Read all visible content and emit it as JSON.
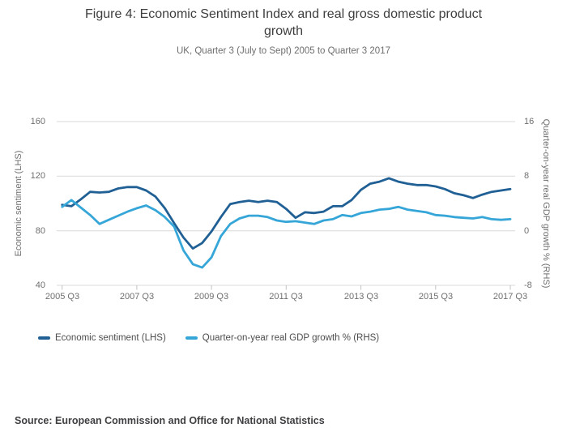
{
  "title": "Figure 4: Economic Sentiment Index and real gross domestic product growth",
  "subtitle": "UK, Quarter 3 (July to Sept) 2005 to Quarter 3 2017",
  "source": "Source: European Commission and Office for National Statistics",
  "colors": {
    "sentiment_line": "#206095",
    "gdp_line": "#35a6d7",
    "gridline": "#d9d9d9",
    "tick": "#c2c2c2"
  },
  "legend": [
    {
      "label": "Economic sentiment (LHS)",
      "color": "#206095"
    },
    {
      "label": "Quarter-on-year real GDP growth % (RHS)",
      "color": "#35a6d7"
    }
  ],
  "chart_data": {
    "type": "line",
    "title": "Figure 4: Economic Sentiment Index and real gross domestic product growth",
    "subtitle": "UK, Quarter 3 (July to Sept) 2005 to Quarter 3 2017",
    "grid": "horizontal",
    "legend_position": "bottom-left",
    "x_tick_labels": [
      "2005 Q3",
      "2007 Q3",
      "2009 Q3",
      "2011 Q3",
      "2013 Q3",
      "2015 Q3",
      "2017 Q3"
    ],
    "x_tick_indices": [
      0,
      8,
      16,
      24,
      32,
      40,
      48
    ],
    "left_axis": {
      "label": "Economic sentiment (LHS)",
      "ticks": [
        40,
        80,
        120,
        160
      ],
      "range": [
        40,
        160
      ]
    },
    "right_axis": {
      "label": "Quarter-on-year real GDP growth % (RHS)",
      "ticks": [
        -8,
        0,
        8,
        16
      ],
      "range": [
        -8,
        16
      ]
    },
    "x": [
      "2005 Q3",
      "2005 Q4",
      "2006 Q1",
      "2006 Q2",
      "2006 Q3",
      "2006 Q4",
      "2007 Q1",
      "2007 Q2",
      "2007 Q3",
      "2007 Q4",
      "2008 Q1",
      "2008 Q2",
      "2008 Q3",
      "2008 Q4",
      "2009 Q1",
      "2009 Q2",
      "2009 Q3",
      "2009 Q4",
      "2010 Q1",
      "2010 Q2",
      "2010 Q3",
      "2010 Q4",
      "2011 Q1",
      "2011 Q2",
      "2011 Q3",
      "2011 Q4",
      "2012 Q1",
      "2012 Q2",
      "2012 Q3",
      "2012 Q4",
      "2013 Q1",
      "2013 Q2",
      "2013 Q3",
      "2013 Q4",
      "2014 Q1",
      "2014 Q2",
      "2014 Q3",
      "2014 Q4",
      "2015 Q1",
      "2015 Q2",
      "2015 Q3",
      "2015 Q4",
      "2016 Q1",
      "2016 Q2",
      "2016 Q3",
      "2016 Q4",
      "2017 Q1",
      "2017 Q2",
      "2017 Q3"
    ],
    "series": [
      {
        "name": "Economic sentiment (LHS)",
        "axis": "left",
        "color": "#206095",
        "values": [
          99,
          98,
          103,
          108.5,
          108,
          108.5,
          111,
          112,
          112,
          109.5,
          105,
          96.5,
          85.5,
          75,
          67,
          71,
          79.5,
          90,
          99.5,
          101,
          102,
          101,
          102,
          101,
          96,
          89.5,
          93.5,
          93,
          94,
          98,
          98,
          102.5,
          110,
          114.5,
          116,
          118.5,
          116,
          114.5,
          113.5,
          113.5,
          112.5,
          110.5,
          107.5,
          106,
          104,
          106.5,
          108.5,
          109.5,
          110.5
        ]
      },
      {
        "name": "Quarter-on-year real GDP growth % (RHS)",
        "axis": "right",
        "color": "#35a6d7",
        "values": [
          3.5,
          4.5,
          3.4,
          2.3,
          1.0,
          1.6,
          2.2,
          2.8,
          3.3,
          3.7,
          3.0,
          2.0,
          0.6,
          -2.9,
          -4.9,
          -5.4,
          -3.9,
          -0.8,
          1.0,
          1.8,
          2.2,
          2.2,
          2.0,
          1.5,
          1.3,
          1.4,
          1.2,
          1.0,
          1.5,
          1.7,
          2.3,
          2.1,
          2.6,
          2.8,
          3.1,
          3.2,
          3.5,
          3.1,
          2.9,
          2.7,
          2.3,
          2.2,
          2.0,
          1.9,
          1.8,
          2.0,
          1.7,
          1.6,
          1.7
        ]
      }
    ]
  }
}
